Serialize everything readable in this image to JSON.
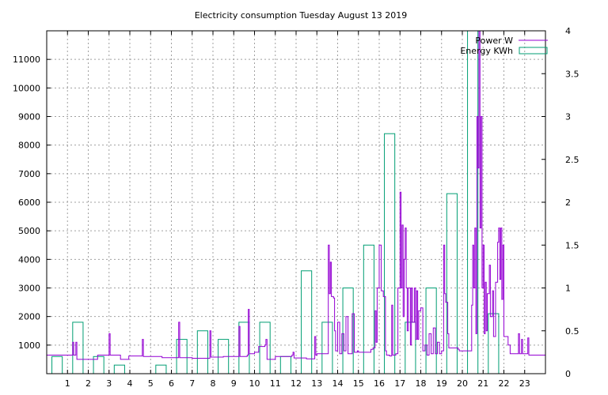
{
  "chart_data": {
    "title": "Electricity consumption Tuesday August 13 2019",
    "type": "line+bar",
    "x": {
      "range": [
        0,
        24
      ],
      "ticks": [
        1,
        2,
        3,
        4,
        5,
        6,
        7,
        8,
        9,
        10,
        11,
        12,
        13,
        14,
        15,
        16,
        17,
        18,
        19,
        20,
        21,
        22,
        23
      ],
      "grid": true
    },
    "y_left": {
      "range": [
        0,
        12000
      ],
      "ticks": [
        1000,
        2000,
        3000,
        4000,
        5000,
        6000,
        7000,
        8000,
        9000,
        10000,
        11000
      ],
      "grid": true
    },
    "y_right": {
      "range": [
        0,
        4
      ],
      "ticks": [
        0,
        0.5,
        1,
        1.5,
        2,
        2.5,
        3,
        3.5,
        4
      ],
      "tick_labels": [
        "0",
        "0.5",
        "1",
        "1.5",
        "2",
        "2.5",
        "3",
        "3.5",
        "4"
      ]
    },
    "legend": {
      "placement": "top-right",
      "entries": [
        {
          "label": "Power W",
          "color": "#9400d3",
          "style": "line"
        },
        {
          "label": "Energy KWh",
          "color": "#009e73",
          "style": "box"
        }
      ]
    },
    "series": [
      {
        "name": "Energy KWh",
        "axis": "right",
        "type": "bar",
        "color": "#009e73",
        "x": [
          0.5,
          1.5,
          2.5,
          3.5,
          5.5,
          6.5,
          7.5,
          8.5,
          9.5,
          10.5,
          11.5,
          12.5,
          13.5,
          14.5,
          15.5,
          16.5,
          17.5,
          18.5,
          19.5,
          20.5,
          21.5
        ],
        "values": [
          0.2,
          0.6,
          0.2,
          0.1,
          0.1,
          0.4,
          0.5,
          0.4,
          0.6,
          0.6,
          0.2,
          1.2,
          0.6,
          1.0,
          1.5,
          2.8,
          0.6,
          1.0,
          2.1,
          4.0,
          0.7
        ]
      },
      {
        "name": "Power W",
        "axis": "left",
        "type": "line",
        "color": "#9400d3",
        "points": [
          [
            0.0,
            650
          ],
          [
            1.2,
            650
          ],
          [
            1.25,
            1100
          ],
          [
            1.3,
            650
          ],
          [
            1.4,
            1100
          ],
          [
            1.45,
            500
          ],
          [
            2.0,
            500
          ],
          [
            2.4,
            500
          ],
          [
            2.45,
            650
          ],
          [
            2.95,
            650
          ],
          [
            3.0,
            1400
          ],
          [
            3.05,
            650
          ],
          [
            3.5,
            650
          ],
          [
            3.55,
            500
          ],
          [
            3.9,
            500
          ],
          [
            3.95,
            620
          ],
          [
            4.5,
            620
          ],
          [
            4.6,
            1200
          ],
          [
            4.65,
            600
          ],
          [
            5.5,
            600
          ],
          [
            5.55,
            560
          ],
          [
            6.3,
            560
          ],
          [
            6.35,
            1800
          ],
          [
            6.4,
            560
          ],
          [
            7.0,
            540
          ],
          [
            7.8,
            540
          ],
          [
            7.85,
            1500
          ],
          [
            7.9,
            580
          ],
          [
            8.5,
            600
          ],
          [
            8.9,
            600
          ],
          [
            9.2,
            600
          ],
          [
            9.25,
            1650
          ],
          [
            9.3,
            600
          ],
          [
            9.65,
            650
          ],
          [
            9.7,
            2250
          ],
          [
            9.75,
            700
          ],
          [
            10.0,
            750
          ],
          [
            10.2,
            950
          ],
          [
            10.5,
            1000
          ],
          [
            10.55,
            1200
          ],
          [
            10.6,
            500
          ],
          [
            11.0,
            600
          ],
          [
            11.5,
            600
          ],
          [
            11.8,
            650
          ],
          [
            11.85,
            750
          ],
          [
            11.9,
            550
          ],
          [
            12.5,
            520
          ],
          [
            12.8,
            520
          ],
          [
            12.9,
            1300
          ],
          [
            12.95,
            650
          ],
          [
            13.0,
            700
          ],
          [
            13.5,
            700
          ],
          [
            13.55,
            4500
          ],
          [
            13.6,
            2800
          ],
          [
            13.65,
            3900
          ],
          [
            13.7,
            2700
          ],
          [
            13.8,
            2650
          ],
          [
            13.85,
            1500
          ],
          [
            13.9,
            800
          ],
          [
            14.0,
            1800
          ],
          [
            14.1,
            700
          ],
          [
            14.2,
            1400
          ],
          [
            14.3,
            800
          ],
          [
            14.4,
            2000
          ],
          [
            14.5,
            700
          ],
          [
            14.7,
            2100
          ],
          [
            14.8,
            750
          ],
          [
            14.95,
            800
          ],
          [
            15.0,
            750
          ],
          [
            15.5,
            750
          ],
          [
            15.6,
            850
          ],
          [
            15.7,
            900
          ],
          [
            15.8,
            2200
          ],
          [
            15.85,
            1100
          ],
          [
            15.9,
            3000
          ],
          [
            16.0,
            4500
          ],
          [
            16.1,
            2900
          ],
          [
            16.2,
            2700
          ],
          [
            16.3,
            800
          ],
          [
            16.35,
            650
          ],
          [
            16.5,
            620
          ],
          [
            16.6,
            2400
          ],
          [
            16.65,
            650
          ],
          [
            16.8,
            700
          ],
          [
            16.9,
            3000
          ],
          [
            17.0,
            6350
          ],
          [
            17.05,
            3000
          ],
          [
            17.1,
            5200
          ],
          [
            17.15,
            2000
          ],
          [
            17.2,
            4000
          ],
          [
            17.25,
            5100
          ],
          [
            17.3,
            3000
          ],
          [
            17.35,
            1500
          ],
          [
            17.4,
            3000
          ],
          [
            17.5,
            1000
          ],
          [
            17.55,
            3000
          ],
          [
            17.6,
            1800
          ],
          [
            17.7,
            3000
          ],
          [
            17.75,
            1200
          ],
          [
            17.8,
            2900
          ],
          [
            17.85,
            1200
          ],
          [
            17.9,
            2200
          ],
          [
            18.0,
            2300
          ],
          [
            18.1,
            800
          ],
          [
            18.2,
            1000
          ],
          [
            18.3,
            650
          ],
          [
            18.4,
            1400
          ],
          [
            18.5,
            700
          ],
          [
            18.6,
            1600
          ],
          [
            18.7,
            700
          ],
          [
            18.8,
            1100
          ],
          [
            18.9,
            700
          ],
          [
            19.0,
            800
          ],
          [
            19.1,
            4500
          ],
          [
            19.15,
            2800
          ],
          [
            19.2,
            2500
          ],
          [
            19.3,
            1400
          ],
          [
            19.35,
            900
          ],
          [
            19.5,
            900
          ],
          [
            19.8,
            850
          ],
          [
            19.85,
            800
          ],
          [
            20.4,
            800
          ],
          [
            20.45,
            2400
          ],
          [
            20.5,
            4500
          ],
          [
            20.55,
            3000
          ],
          [
            20.6,
            5100
          ],
          [
            20.65,
            1400
          ],
          [
            20.7,
            9000
          ],
          [
            20.75,
            7200
          ],
          [
            20.8,
            12000
          ],
          [
            20.85,
            5100
          ],
          [
            20.9,
            9000
          ],
          [
            20.95,
            3000
          ],
          [
            21.0,
            4500
          ],
          [
            21.05,
            1400
          ],
          [
            21.1,
            3200
          ],
          [
            21.15,
            1500
          ],
          [
            21.2,
            2800
          ],
          [
            21.3,
            3800
          ],
          [
            21.35,
            2000
          ],
          [
            21.45,
            2900
          ],
          [
            21.5,
            1300
          ],
          [
            21.6,
            3200
          ],
          [
            21.7,
            4600
          ],
          [
            21.75,
            5100
          ],
          [
            21.8,
            3300
          ],
          [
            21.85,
            5100
          ],
          [
            21.9,
            2600
          ],
          [
            21.95,
            4500
          ],
          [
            22.0,
            1300
          ],
          [
            22.2,
            1000
          ],
          [
            22.3,
            700
          ],
          [
            22.65,
            700
          ],
          [
            22.7,
            1400
          ],
          [
            22.75,
            700
          ],
          [
            22.85,
            1200
          ],
          [
            22.9,
            700
          ],
          [
            23.1,
            700
          ],
          [
            23.15,
            1250
          ],
          [
            23.2,
            650
          ],
          [
            24.0,
            650
          ]
        ]
      }
    ]
  }
}
